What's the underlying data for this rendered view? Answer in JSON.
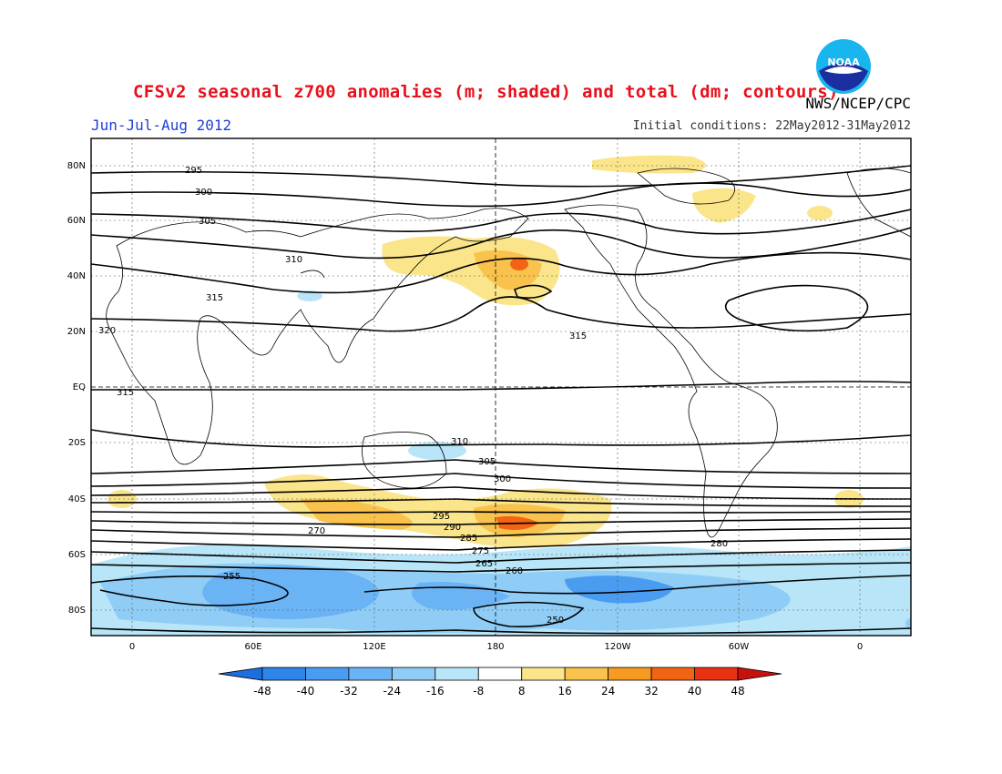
{
  "header": {
    "title": "CFSv2 seasonal z700 anomalies (m; shaded) and total (dm; contours)",
    "season": "Jun-Jul-Aug 2012",
    "initial_conditions": "Initial conditions: 22May2012-31May2012",
    "agency": "NWS/NCEP/CPC",
    "logo_text": "NOAA"
  },
  "axes": {
    "lat_ticks": [
      "80N",
      "60N",
      "40N",
      "20N",
      "EQ",
      "20S",
      "40S",
      "60S",
      "80S"
    ],
    "lon_ticks": [
      "0",
      "60E",
      "120E",
      "180",
      "120W",
      "60W",
      "0"
    ]
  },
  "contour_labels": [
    "295",
    "300",
    "305",
    "310",
    "315",
    "320",
    "315",
    "315",
    "310",
    "305",
    "300",
    "295",
    "290",
    "285",
    "280",
    "275",
    "270",
    "265",
    "260",
    "255",
    "250"
  ],
  "colorbar": {
    "labels": [
      "-48",
      "-40",
      "-32",
      "-24",
      "-16",
      "-8",
      "8",
      "16",
      "24",
      "32",
      "40",
      "48"
    ],
    "colors": [
      "#1d6fe0",
      "#2f86ea",
      "#4a9cf0",
      "#6ab3f4",
      "#90cdf6",
      "#b8e6f8",
      "#ffffff",
      "#fbe58a",
      "#f8c24c",
      "#f69a22",
      "#f26414",
      "#e83212",
      "#c8100c"
    ]
  },
  "colors": {
    "title": "#e8101c",
    "season": "#1f3fd8"
  }
}
